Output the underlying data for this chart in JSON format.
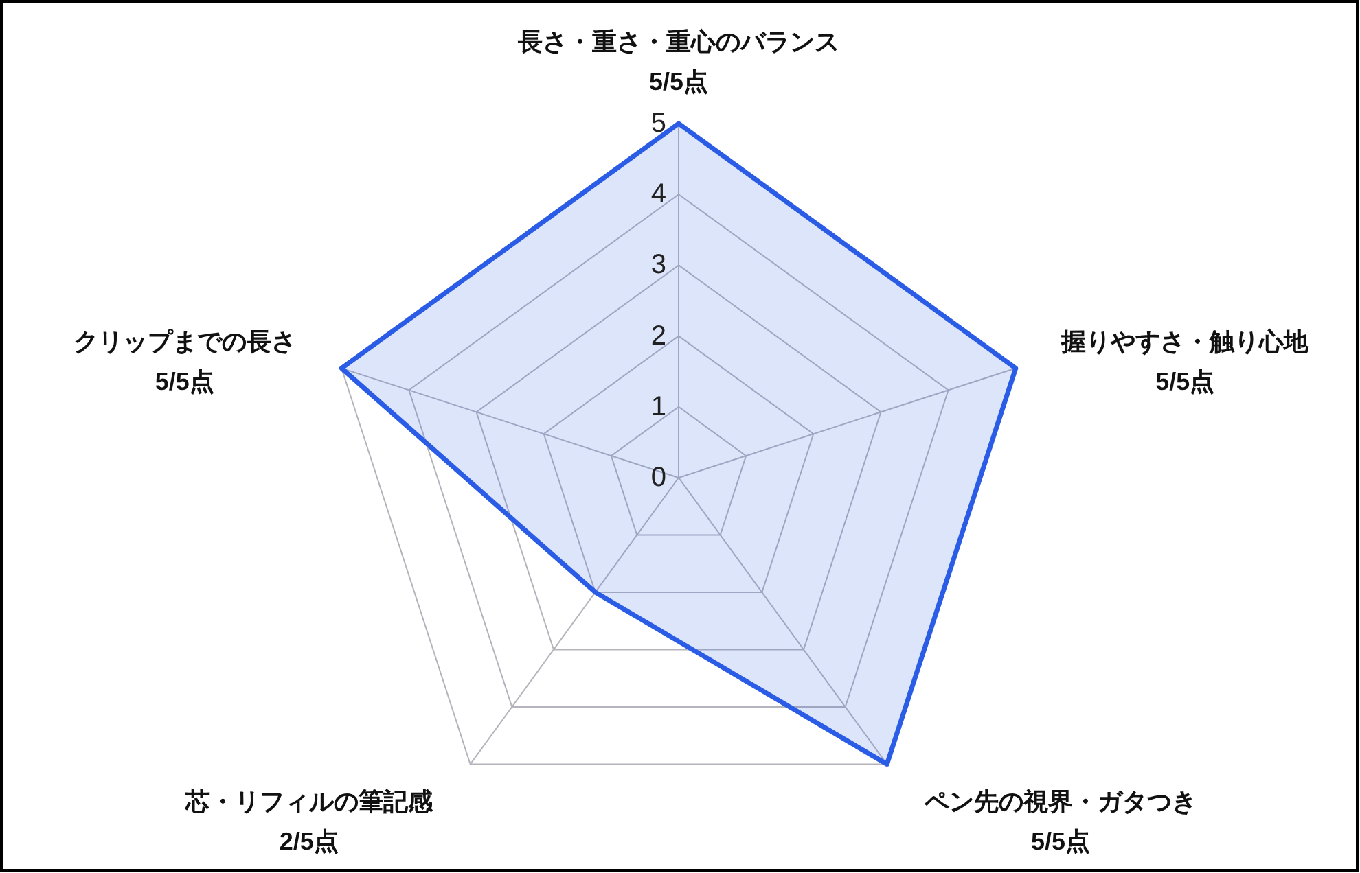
{
  "chart_data": {
    "type": "radar",
    "categories": [
      "長さ・重さ・重心のバランス\n5/5点",
      "握りやすさ・触り心地\n5/5点",
      "ペン先の視界・ガタつき\n5/5点",
      "芯・リフィルの筆記感\n2/5点",
      "クリップまでの長さ\n5/5点"
    ],
    "series": [
      {
        "color": "#2b5ce6",
        "values": [
          5,
          5,
          5,
          2,
          5
        ]
      }
    ],
    "ylim": [
      0,
      5
    ],
    "yticks": [
      0,
      1,
      2,
      3,
      4,
      5
    ],
    "grid": true
  }
}
